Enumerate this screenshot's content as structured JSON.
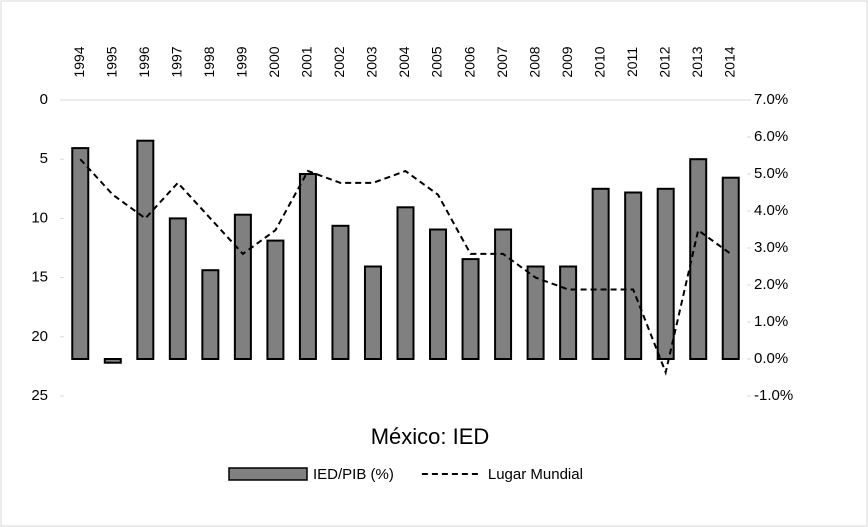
{
  "chart_data": {
    "type": "combo",
    "title": "México: IED",
    "categories": [
      "1994",
      "1995",
      "1996",
      "1997",
      "1998",
      "1999",
      "2000",
      "2001",
      "2002",
      "2003",
      "2004",
      "2005",
      "2006",
      "2007",
      "2008",
      "2009",
      "2010",
      "2011",
      "2012",
      "2013",
      "2014"
    ],
    "series": [
      {
        "name": "IED/PIB (%)",
        "type": "bar",
        "axis": "y2",
        "color": "#808080",
        "values": [
          5.7,
          -0.1,
          5.9,
          3.8,
          2.4,
          3.9,
          3.2,
          5.0,
          3.6,
          2.5,
          4.1,
          3.5,
          2.7,
          3.5,
          2.5,
          2.5,
          4.6,
          4.5,
          4.6,
          5.4,
          4.9
        ]
      },
      {
        "name": "Lugar Mundial",
        "type": "line",
        "axis": "y",
        "color": "#000000",
        "dashed": true,
        "values": [
          5,
          8,
          10,
          7,
          10,
          13,
          11,
          6,
          7,
          7,
          6,
          8,
          13,
          13,
          15,
          16,
          16,
          16,
          23,
          11,
          13
        ]
      }
    ],
    "ylim": [
      0,
      25
    ],
    "y_reversed": true,
    "yticks": [
      0,
      5,
      10,
      15,
      20,
      25
    ],
    "y2lim": [
      -1,
      7
    ],
    "y2ticks": [
      {
        "value": 7,
        "label": "7.0%"
      },
      {
        "value": 6,
        "label": "6.0%"
      },
      {
        "value": 5,
        "label": "5.0%"
      },
      {
        "value": 4,
        "label": "4.0%"
      },
      {
        "value": 3,
        "label": "3.0%"
      },
      {
        "value": 2,
        "label": "2.0%"
      },
      {
        "value": 1,
        "label": "1.0%"
      },
      {
        "value": 0,
        "label": "0.0%"
      },
      {
        "value": -1,
        "label": "-1.0%"
      }
    ],
    "legend": "bottom"
  }
}
